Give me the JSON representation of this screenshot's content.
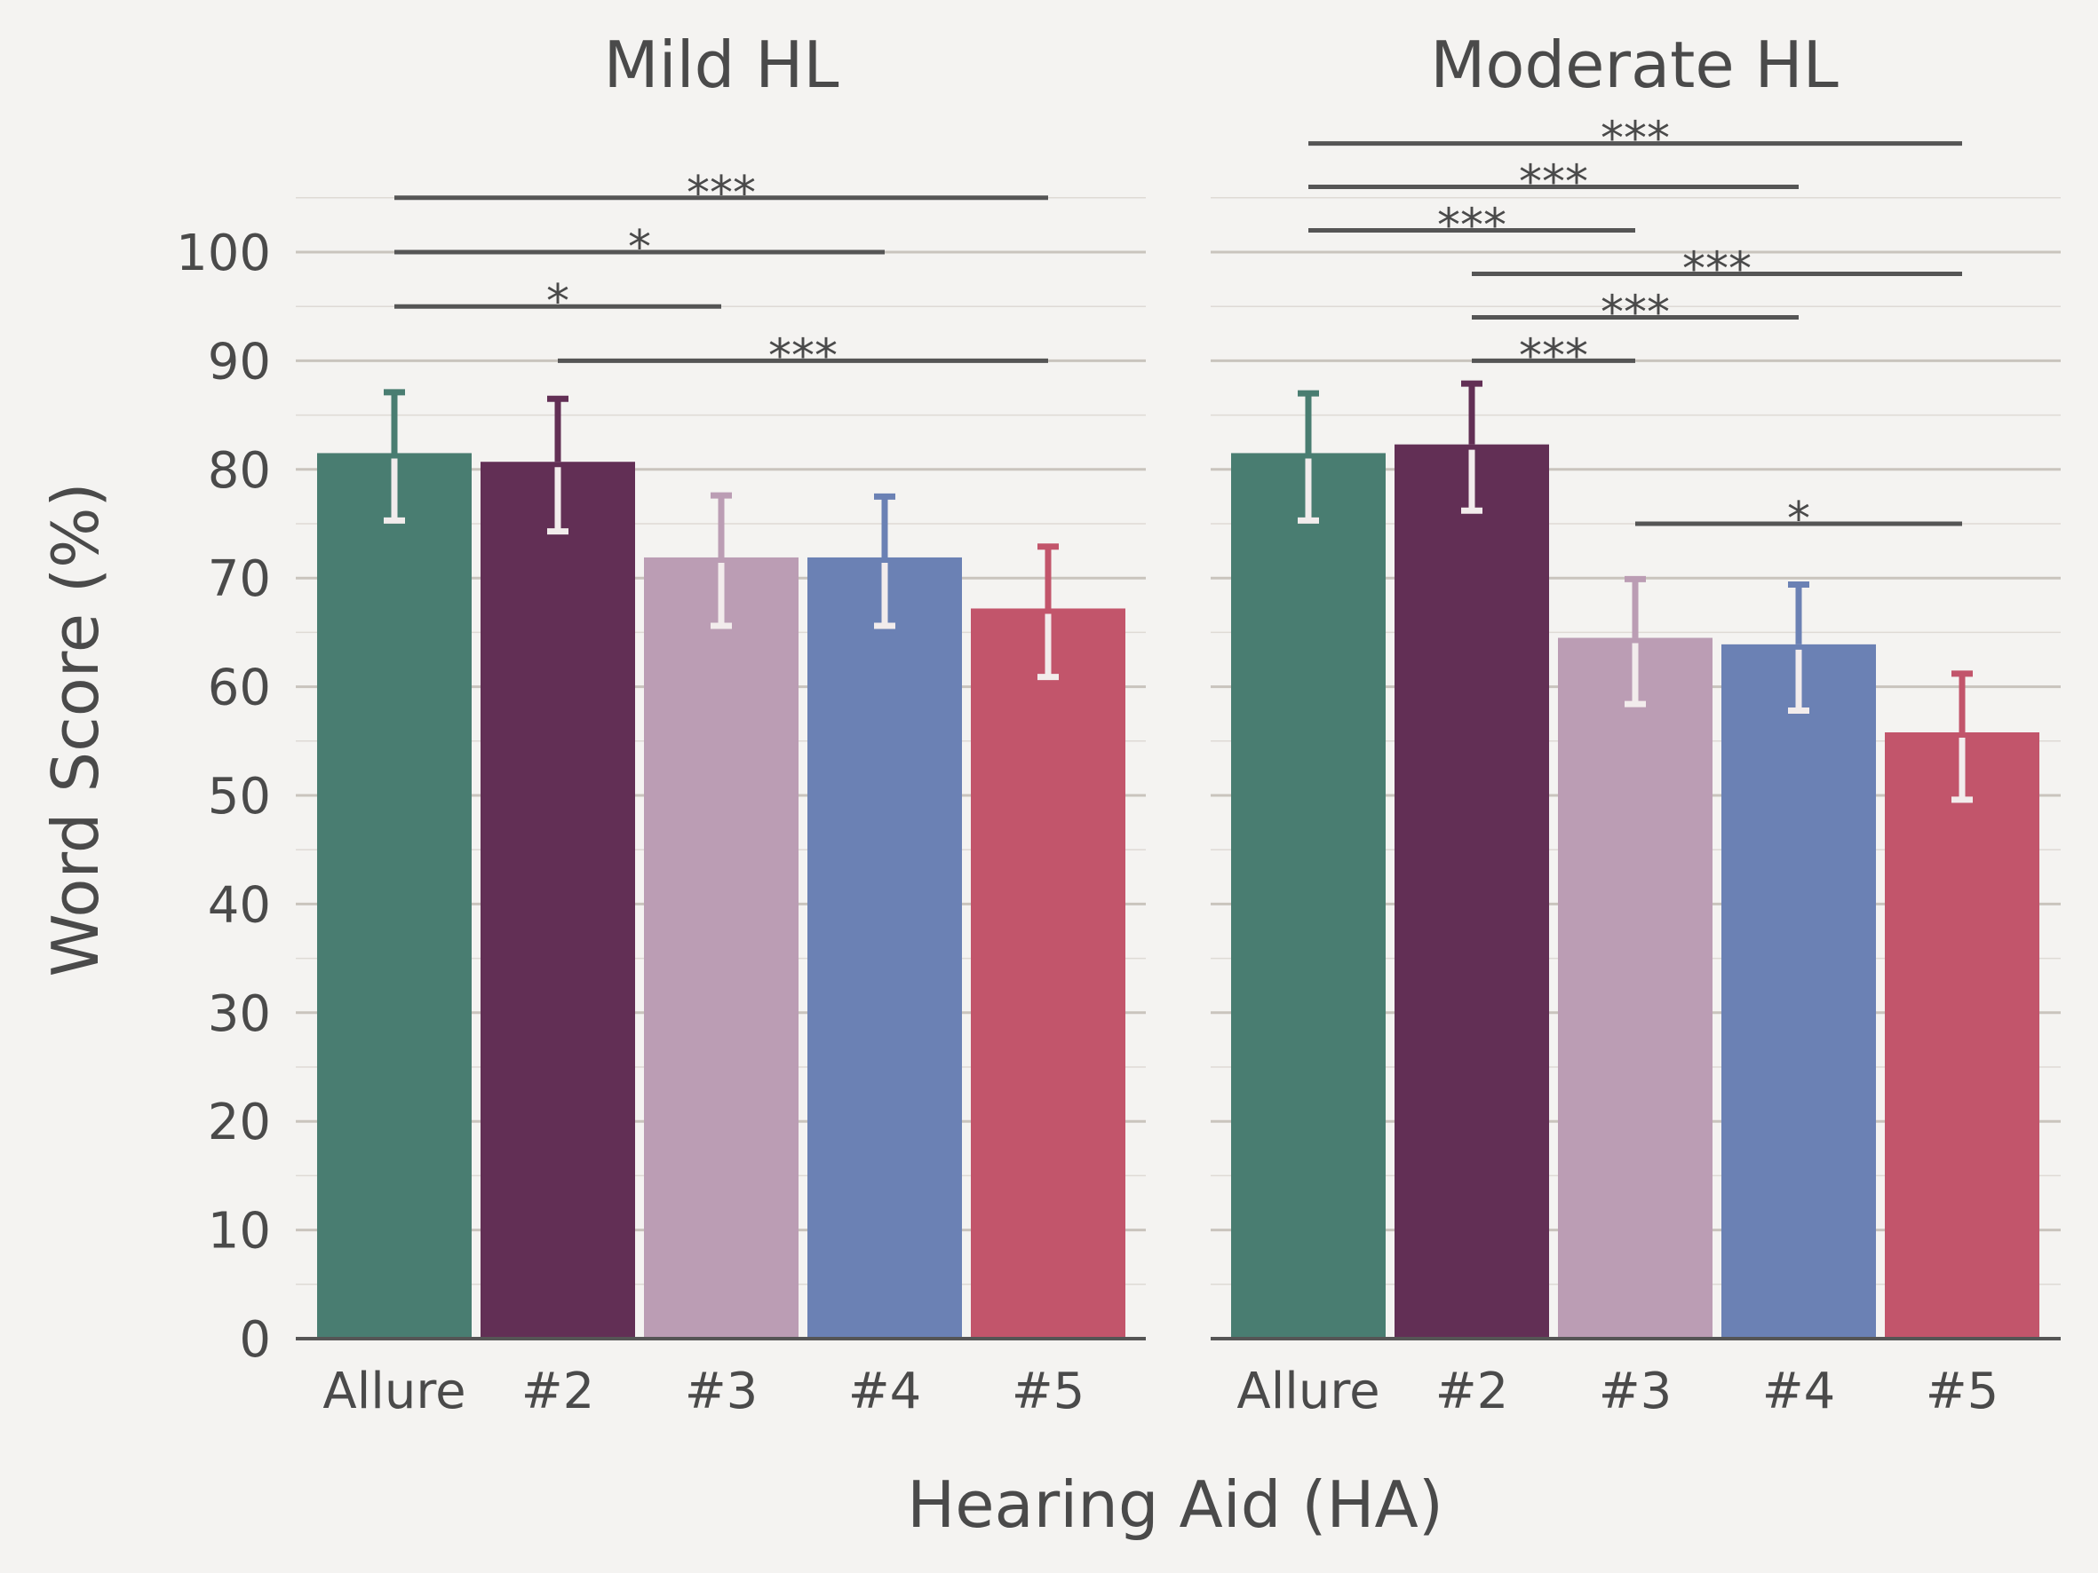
{
  "chart_data": {
    "type": "bar",
    "xlabel": "Hearing Aid (HA)",
    "ylabel": "Word Score (%)",
    "ylim": [
      0,
      107
    ],
    "yticks": [
      0,
      10,
      20,
      30,
      40,
      50,
      60,
      70,
      80,
      90,
      100
    ],
    "categories": [
      "Allure",
      "#2",
      "#3",
      "#4",
      "#5"
    ],
    "colors": [
      "#497d71",
      "#622f55",
      "#bb9db4",
      "#6b81b4",
      "#c2556b"
    ],
    "panels": [
      {
        "title": "Mild HL",
        "values": [
          81.5,
          80.7,
          71.9,
          71.9,
          67.2
        ],
        "error_low": [
          75.3,
          74.3,
          65.6,
          65.6,
          60.9
        ],
        "error_high": [
          87.1,
          86.5,
          77.6,
          77.5,
          72.9
        ],
        "significance": [
          {
            "from": 0,
            "to": 4,
            "y": 105,
            "label": "***"
          },
          {
            "from": 0,
            "to": 3,
            "y": 100,
            "label": "*"
          },
          {
            "from": 0,
            "to": 2,
            "y": 95,
            "label": "*"
          },
          {
            "from": 1,
            "to": 4,
            "y": 90,
            "label": "***"
          }
        ]
      },
      {
        "title": "Moderate HL",
        "values": [
          81.5,
          82.3,
          64.5,
          63.9,
          55.8
        ],
        "error_low": [
          75.3,
          76.2,
          58.4,
          57.8,
          49.6
        ],
        "error_high": [
          87.0,
          87.9,
          69.9,
          69.4,
          61.2
        ],
        "significance": [
          {
            "from": 0,
            "to": 4,
            "y": 110,
            "label": "***"
          },
          {
            "from": 0,
            "to": 3,
            "y": 106,
            "label": "***"
          },
          {
            "from": 0,
            "to": 2,
            "y": 102,
            "label": "***"
          },
          {
            "from": 1,
            "to": 4,
            "y": 98,
            "label": "***"
          },
          {
            "from": 1,
            "to": 3,
            "y": 94,
            "label": "***"
          },
          {
            "from": 1,
            "to": 2,
            "y": 90,
            "label": "***"
          },
          {
            "from": 2,
            "to": 4,
            "y": 75,
            "label": "*"
          }
        ]
      }
    ]
  }
}
